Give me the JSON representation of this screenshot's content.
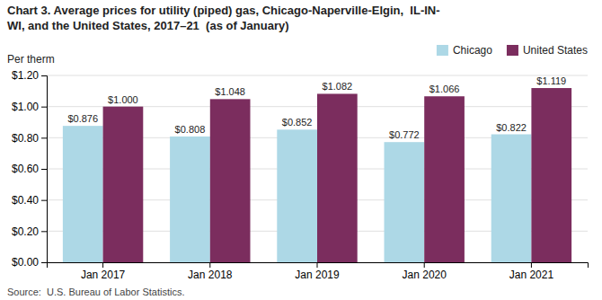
{
  "chart_data": {
    "type": "bar",
    "title": "Chart 3. Average prices for utility (piped) gas, Chicago-Naperville-Elgin,  IL-IN-\nWI, and the United States, 2017–21  (as of January)",
    "ylabel": "Per therm",
    "source": "Source:  U.S. Bureau of Labor Statistics.",
    "categories": [
      "Jan 2017",
      "Jan 2018",
      "Jan 2019",
      "Jan 2020",
      "Jan 2021"
    ],
    "series": [
      {
        "name": "Chicago",
        "color": "#add8e6",
        "values": [
          0.876,
          0.808,
          0.852,
          0.772,
          0.822
        ],
        "value_labels": [
          "$0.876",
          "$0.808",
          "$0.852",
          "$0.772",
          "$0.822"
        ]
      },
      {
        "name": "United States",
        "color": "#7B2D5E",
        "values": [
          1.0,
          1.048,
          1.082,
          1.066,
          1.119
        ],
        "value_labels": [
          "$1.000",
          "$1.048",
          "$1.082",
          "$1.066",
          "$1.119"
        ]
      }
    ],
    "ylim": [
      0.0,
      1.2
    ],
    "yticks": [
      {
        "value": 0.0,
        "label": "$0.00"
      },
      {
        "value": 0.2,
        "label": "$0.20"
      },
      {
        "value": 0.4,
        "label": "$0.40"
      },
      {
        "value": 0.6,
        "label": "$0.60"
      },
      {
        "value": 0.8,
        "label": "$0.80"
      },
      {
        "value": 1.0,
        "label": "$1.00"
      },
      {
        "value": 1.2,
        "label": "$1.20"
      }
    ],
    "grid": true,
    "legend": "upper right",
    "data_labels": true
  }
}
